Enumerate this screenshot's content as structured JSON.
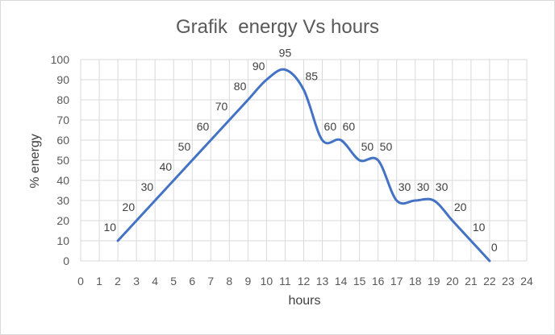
{
  "chart_data": {
    "type": "line",
    "title": "Grafik  energy Vs hours",
    "xlabel": "hours",
    "ylabel": "% energy",
    "xlim": [
      0,
      24
    ],
    "ylim": [
      0,
      100
    ],
    "x_ticks": [
      0,
      1,
      2,
      3,
      4,
      5,
      6,
      7,
      8,
      9,
      10,
      11,
      12,
      13,
      14,
      15,
      16,
      17,
      18,
      19,
      20,
      21,
      22,
      23,
      24
    ],
    "y_ticks": [
      0,
      10,
      20,
      30,
      40,
      50,
      60,
      70,
      80,
      90,
      100
    ],
    "grid": true,
    "legend": "none",
    "line_color": "#4472c4",
    "series": [
      {
        "x": [
          2,
          3,
          4,
          5,
          6,
          7,
          8,
          9,
          10,
          11,
          12,
          13,
          14,
          15,
          16,
          17,
          18,
          19,
          20,
          21,
          22
        ],
        "y": [
          10,
          20,
          30,
          40,
          50,
          60,
          70,
          80,
          90,
          95,
          85,
          60,
          60,
          50,
          50,
          30,
          30,
          30,
          20,
          10,
          0
        ]
      }
    ]
  }
}
